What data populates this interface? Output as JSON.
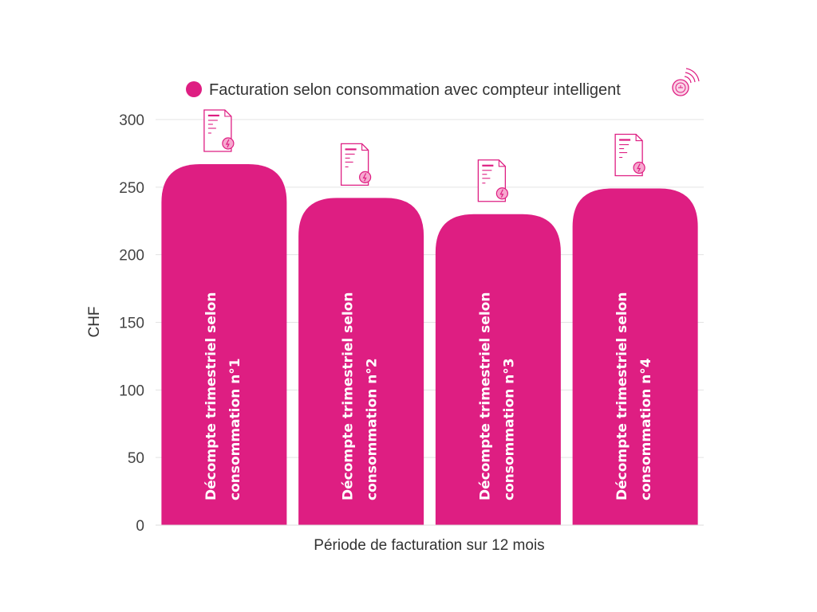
{
  "chart_data": {
    "type": "bar",
    "title": "",
    "xlabel": "Période de facturation sur 12 mois",
    "ylabel": "CHF",
    "ylim": [
      0,
      300
    ],
    "yticks": [
      0,
      50,
      100,
      150,
      200,
      250,
      300
    ],
    "grid": true,
    "legend_position": "top",
    "categories": [
      "Décompte trimestriel selon consommation n°1",
      "Décompte trimestriel selon consommation n°2",
      "Décompte trimestriel selon consommation n°3",
      "Décompte trimestriel selon consommation n°4"
    ],
    "category_lines": [
      [
        "Décompte trimestriel selon",
        "consommation n°1"
      ],
      [
        "Décompte trimestriel selon",
        "consommation n°2"
      ],
      [
        "Décompte trimestriel selon",
        "consommation n°3"
      ],
      [
        "Décompte trimestriel selon",
        "consommation n°4"
      ]
    ],
    "series": [
      {
        "name": "Facturation selon consommation avec compteur intelligent",
        "values": [
          267,
          242,
          230,
          249
        ],
        "color": "#de1e82"
      }
    ],
    "icons": {
      "bar_top": "invoice-document-icon",
      "legend": "smart-meter-icon"
    }
  }
}
